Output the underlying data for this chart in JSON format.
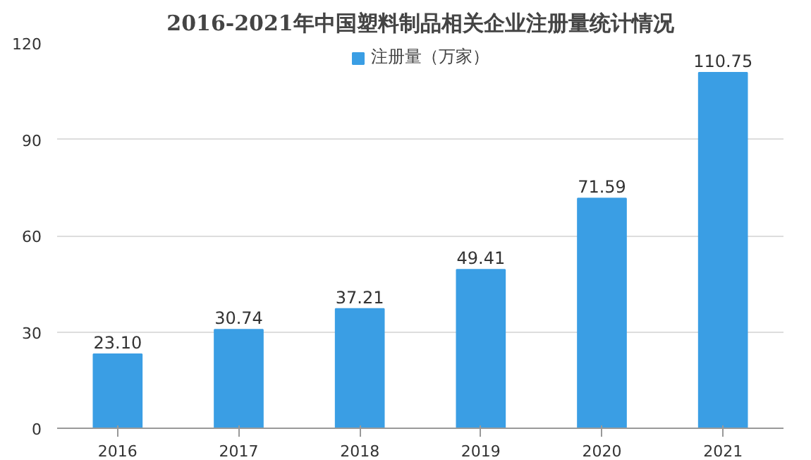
{
  "chart_data": {
    "type": "bar",
    "title": "2016-2021年中国塑料制品相关企业注册量统计情况",
    "categories": [
      "2016",
      "2017",
      "2018",
      "2019",
      "2020",
      "2021"
    ],
    "series": [
      {
        "name": "注册量（万家）",
        "color": "#3a9ee4",
        "values": [
          23.1,
          30.74,
          37.21,
          49.41,
          71.59,
          110.75
        ]
      }
    ],
    "value_labels": [
      "23.10",
      "30.74",
      "37.21",
      "49.41",
      "71.59",
      "110.75"
    ],
    "ylim": [
      0,
      120
    ],
    "yticks": [
      0,
      30,
      60,
      90,
      120
    ],
    "grid": "y",
    "legend": "top"
  }
}
